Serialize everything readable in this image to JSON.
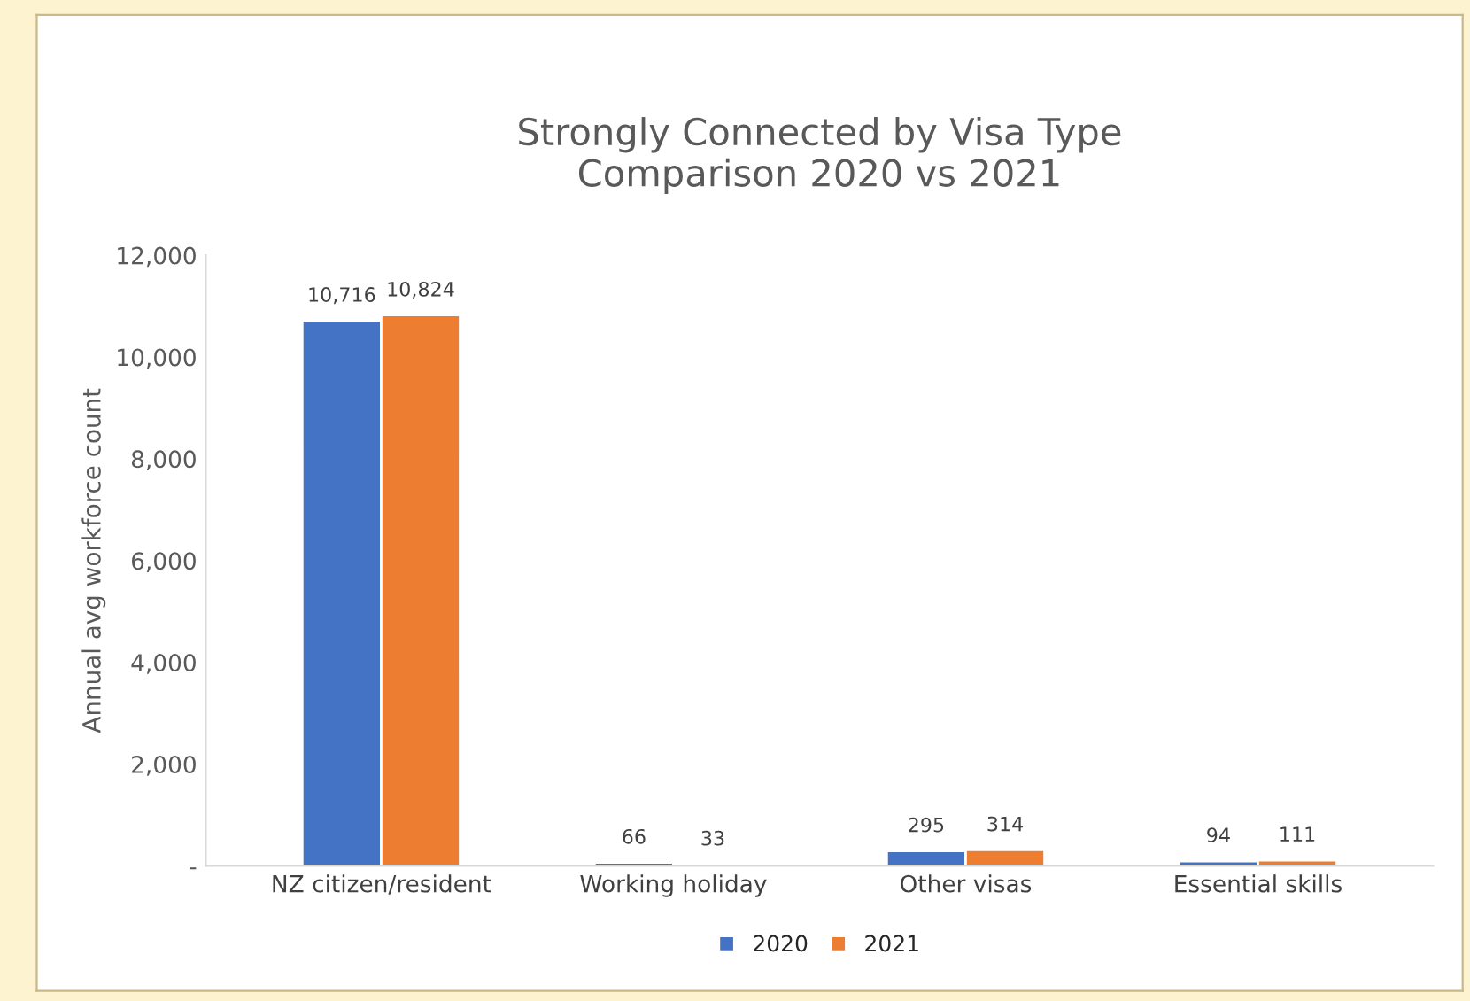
{
  "chart_data": {
    "type": "bar",
    "title": "Strongly Connected by Visa Type\nComparison 2020 vs 2021",
    "ylabel": "Annual avg workforce count",
    "categories": [
      "NZ citizen/resident",
      "Working holiday",
      "Other visas",
      "Essential skills"
    ],
    "series": [
      {
        "name": "2020",
        "color": "#4472c4",
        "values": [
          10716,
          66,
          295,
          94
        ],
        "value_labels": [
          "10,716",
          "66",
          "295",
          "94"
        ]
      },
      {
        "name": "2021",
        "color": "#ed7d31",
        "values": [
          10824,
          33,
          314,
          111
        ],
        "value_labels": [
          "10,824",
          "33",
          "314",
          "111"
        ]
      }
    ],
    "ylim": [
      0,
      12000
    ],
    "yticks": [
      {
        "value": 0,
        "label": "-"
      },
      {
        "value": 2000,
        "label": "2,000"
      },
      {
        "value": 4000,
        "label": "4,000"
      },
      {
        "value": 6000,
        "label": "6,000"
      },
      {
        "value": 8000,
        "label": "8,000"
      },
      {
        "value": 10000,
        "label": "10,000"
      },
      {
        "value": 12000,
        "label": "12,000"
      }
    ],
    "grid": false,
    "legend": "bottom"
  }
}
